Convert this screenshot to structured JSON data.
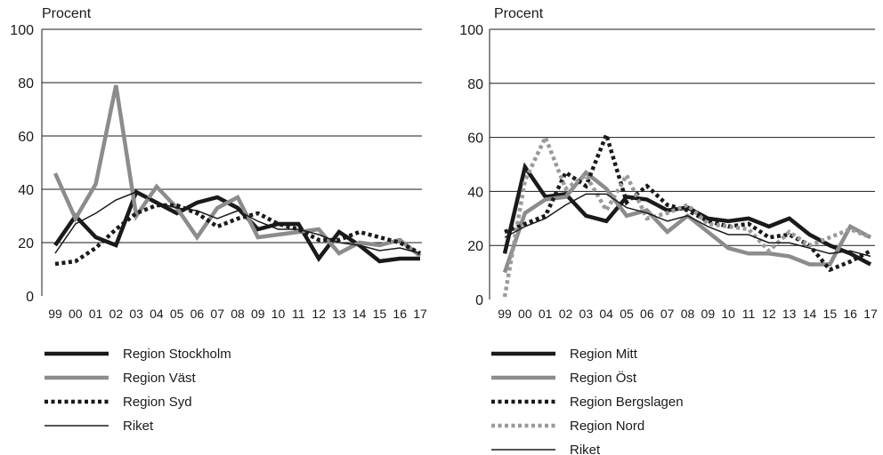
{
  "chart_data": [
    {
      "type": "line",
      "ylabel": "Procent",
      "ylim": [
        0,
        100
      ],
      "yticks": [
        "0",
        "20",
        "40",
        "60",
        "80",
        "100"
      ],
      "categories": [
        "99",
        "00",
        "01",
        "02",
        "03",
        "04",
        "05",
        "06",
        "07",
        "08",
        "09",
        "10",
        "11",
        "12",
        "13",
        "14",
        "15",
        "16",
        "17"
      ],
      "grid": true,
      "legend_position": "bottom",
      "series": [
        {
          "name": "Region Stockholm",
          "color": "#1a1a1a",
          "style": "thick-solid",
          "values": [
            19,
            30,
            22,
            19,
            39,
            35,
            31,
            35,
            37,
            33,
            25,
            27,
            27,
            14,
            24,
            19,
            13,
            14,
            14
          ]
        },
        {
          "name": "Region Väst",
          "color": "#8c8c8c",
          "style": "thick-solid",
          "values": [
            46,
            29,
            42,
            79,
            30,
            41,
            33,
            22,
            33,
            37,
            22,
            23,
            24,
            25,
            16,
            20,
            19,
            21,
            15
          ]
        },
        {
          "name": "Region Syd",
          "color": "#1a1a1a",
          "style": "dotted",
          "values": [
            12,
            13,
            18,
            25,
            31,
            34,
            34,
            31,
            26,
            29,
            31,
            27,
            25,
            21,
            21,
            24,
            22,
            20,
            16
          ]
        },
        {
          "name": "Riket",
          "color": "#1a1a1a",
          "style": "thin-solid",
          "values": [
            16,
            27,
            31,
            36,
            39,
            35,
            33,
            32,
            29,
            32,
            28,
            25,
            25,
            23,
            20,
            19,
            17,
            18,
            16
          ]
        }
      ]
    },
    {
      "type": "line",
      "ylabel": "Procent",
      "ylim": [
        0,
        100
      ],
      "yticks": [
        "0",
        "20",
        "40",
        "60",
        "80",
        "100"
      ],
      "categories": [
        "99",
        "00",
        "01",
        "02",
        "03",
        "04",
        "05",
        "06",
        "07",
        "08",
        "09",
        "10",
        "11",
        "12",
        "13",
        "14",
        "15",
        "16",
        "17"
      ],
      "grid": true,
      "legend_position": "bottom",
      "series": [
        {
          "name": "Region Mitt",
          "color": "#1a1a1a",
          "style": "thick-solid",
          "values": [
            17,
            49,
            38,
            39,
            31,
            29,
            38,
            37,
            33,
            34,
            30,
            29,
            30,
            27,
            30,
            24,
            20,
            17,
            13
          ]
        },
        {
          "name": "Region Öst",
          "color": "#8c8c8c",
          "style": "thick-solid",
          "values": [
            10,
            32,
            37,
            38,
            47,
            41,
            31,
            33,
            25,
            31,
            25,
            19,
            17,
            17,
            16,
            13,
            13,
            27,
            23
          ]
        },
        {
          "name": "Region Bergslagen",
          "color": "#1a1a1a",
          "style": "dotted",
          "values": [
            25,
            28,
            31,
            47,
            42,
            61,
            36,
            42,
            35,
            33,
            29,
            27,
            28,
            23,
            24,
            20,
            11,
            14,
            18
          ]
        },
        {
          "name": "Region Nord",
          "color": "#9a9a9a",
          "style": "dotted",
          "values": [
            1,
            44,
            60,
            41,
            46,
            33,
            46,
            30,
            32,
            35,
            28,
            27,
            26,
            18,
            25,
            20,
            23,
            26,
            23
          ]
        },
        {
          "name": "Riket",
          "color": "#1a1a1a",
          "style": "thin-solid",
          "values": [
            23,
            27,
            30,
            35,
            39,
            39,
            34,
            32,
            29,
            31,
            27,
            24,
            24,
            21,
            21,
            19,
            17,
            18,
            16
          ]
        }
      ]
    }
  ]
}
